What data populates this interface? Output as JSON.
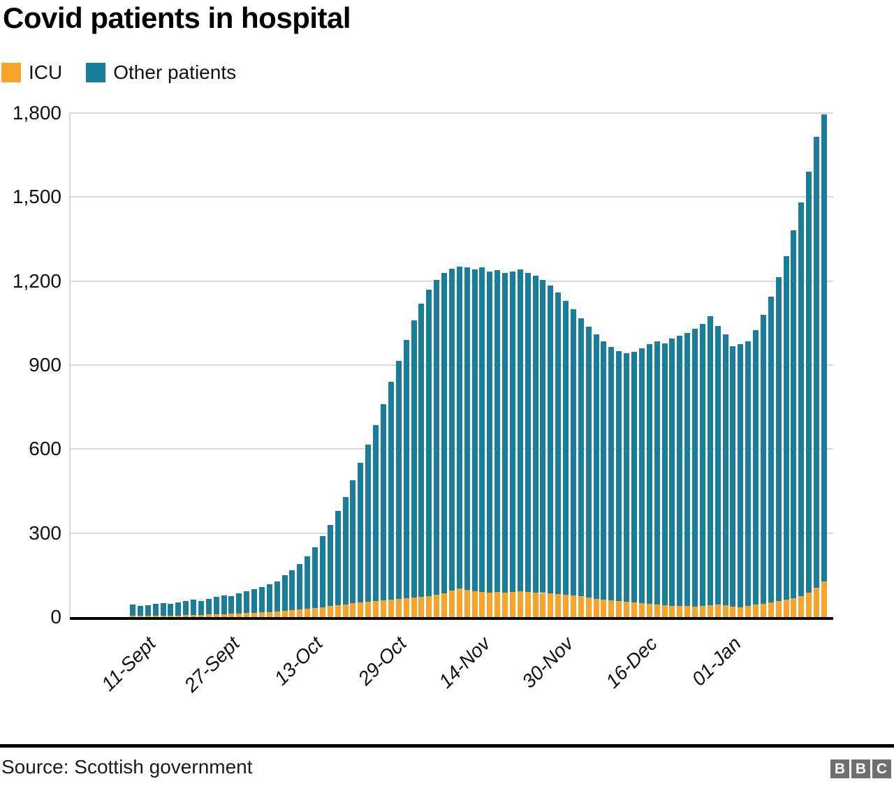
{
  "header": {
    "title": "Covid patients in hospital"
  },
  "legend": {
    "items": [
      {
        "label": "ICU",
        "color": "#f8a42c"
      },
      {
        "label": "Other patients",
        "color": "#1a7d99"
      }
    ]
  },
  "footer": {
    "source": "Source: Scottish government",
    "logo_letters": [
      "B",
      "B",
      "C"
    ]
  },
  "chart_data": {
    "type": "bar",
    "stacked": true,
    "title": "Covid patients in hospital",
    "xlabel": "",
    "ylabel": "",
    "ylim": [
      0,
      1800
    ],
    "grid": true,
    "legend_position": "top-left",
    "colors": {
      "icu": "#f8a42c",
      "other": "#1a7d99"
    },
    "y_ticks": [
      {
        "value": 0,
        "label": "0"
      },
      {
        "value": 300,
        "label": "300"
      },
      {
        "value": 600,
        "label": "600"
      },
      {
        "value": 900,
        "label": "900"
      },
      {
        "value": 1200,
        "label": "1,200"
      },
      {
        "value": 1500,
        "label": "1,500"
      },
      {
        "value": 1800,
        "label": "1,800"
      }
    ],
    "x_tick_labels": [
      "11-Sept",
      "27-Sept",
      "13-Oct",
      "29-Oct",
      "14-Nov",
      "30-Nov",
      "16-Dec",
      "01-Jan"
    ],
    "x_tick_indices": [
      1,
      12,
      23,
      34,
      45,
      56,
      67,
      78
    ],
    "series": [
      {
        "name": "ICU",
        "values": [
          4,
          4,
          5,
          5,
          6,
          5,
          6,
          7,
          8,
          8,
          9,
          10,
          11,
          12,
          13,
          14,
          15,
          17,
          18,
          20,
          22,
          25,
          27,
          30,
          33,
          36,
          40,
          43,
          46,
          50,
          53,
          56,
          58,
          61,
          63,
          65,
          67,
          70,
          72,
          74,
          80,
          85,
          95,
          102,
          96,
          92,
          90,
          88,
          90,
          87,
          89,
          92,
          90,
          88,
          86,
          84,
          82,
          80,
          78,
          74,
          70,
          66,
          63,
          60,
          57,
          54,
          52,
          50,
          47,
          45,
          43,
          41,
          40,
          39,
          38,
          40,
          42,
          45,
          43,
          38,
          36,
          40,
          44,
          48,
          52,
          57,
          62,
          68,
          76,
          88,
          105,
          128
        ]
      },
      {
        "name": "Other patients",
        "values": [
          41,
          36,
          38,
          42,
          44,
          43,
          47,
          51,
          54,
          50,
          57,
          62,
          67,
          62,
          72,
          78,
          84,
          91,
          100,
          108,
          128,
          143,
          163,
          188,
          217,
          252,
          290,
          335,
          384,
          438,
          497,
          559,
          627,
          699,
          777,
          850,
          923,
          990,
          1048,
          1096,
          1125,
          1143,
          1150,
          1150,
          1154,
          1150,
          1158,
          1147,
          1150,
          1141,
          1146,
          1150,
          1140,
          1132,
          1119,
          1101,
          1078,
          1050,
          1022,
          994,
          968,
          944,
          922,
          905,
          893,
          888,
          896,
          910,
          928,
          940,
          935,
          954,
          965,
          976,
          992,
          1008,
          1033,
          995,
          967,
          930,
          939,
          945,
          981,
          1032,
          1093,
          1158,
          1228,
          1312,
          1404,
          1502,
          1610,
          1667
        ]
      }
    ]
  }
}
